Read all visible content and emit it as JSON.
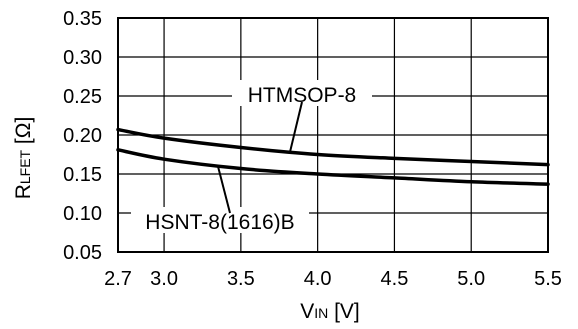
{
  "chart_data": {
    "type": "line",
    "xlabel": {
      "main": "V",
      "sub": "IN",
      "unit": " [V]"
    },
    "ylabel": {
      "main": "R",
      "sub": "LFET",
      "unit": " [Ω]"
    },
    "xlim": [
      2.7,
      5.5
    ],
    "ylim": [
      0.05,
      0.35
    ],
    "x_ticks": [
      {
        "value": 2.7,
        "label": "2.7"
      },
      {
        "value": 3.0,
        "label": "3.0"
      },
      {
        "value": 3.5,
        "label": "3.5"
      },
      {
        "value": 4.0,
        "label": "4.0"
      },
      {
        "value": 4.5,
        "label": "4.5"
      },
      {
        "value": 5.0,
        "label": "5.0"
      },
      {
        "value": 5.5,
        "label": "5.5"
      }
    ],
    "y_ticks": [
      {
        "value": 0.05,
        "label": "0.05"
      },
      {
        "value": 0.1,
        "label": "0.10"
      },
      {
        "value": 0.15,
        "label": "0.15"
      },
      {
        "value": 0.2,
        "label": "0.20"
      },
      {
        "value": 0.25,
        "label": "0.25"
      },
      {
        "value": 0.3,
        "label": "0.30"
      },
      {
        "value": 0.35,
        "label": "0.35"
      }
    ],
    "grid": true,
    "series": [
      {
        "name": "HTMSOP-8",
        "x": [
          2.7,
          3.0,
          3.5,
          4.0,
          4.5,
          5.0,
          5.5
        ],
        "y": [
          0.207,
          0.196,
          0.184,
          0.175,
          0.17,
          0.166,
          0.162
        ],
        "color": "#000000"
      },
      {
        "name": "HSNT-8(1616)B",
        "x": [
          2.7,
          3.0,
          3.5,
          4.0,
          4.5,
          5.0,
          5.5
        ],
        "y": [
          0.181,
          0.169,
          0.157,
          0.15,
          0.145,
          0.14,
          0.137
        ],
        "color": "#000000"
      }
    ],
    "annotations": [
      {
        "text": "HTMSOP-8",
        "series": 0,
        "point_x": 3.82
      },
      {
        "text": "HSNT-8(1616)B",
        "series": 1,
        "point_x": 3.35
      }
    ]
  }
}
